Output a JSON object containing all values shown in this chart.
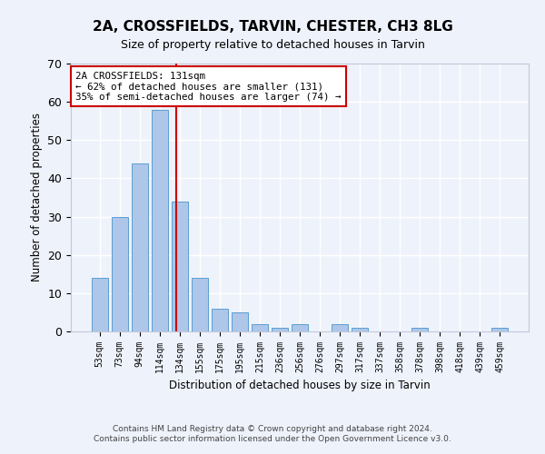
{
  "title_line1": "2A, CROSSFIELDS, TARVIN, CHESTER, CH3 8LG",
  "title_line2": "Size of property relative to detached houses in Tarvin",
  "xlabel": "Distribution of detached houses by size in Tarvin",
  "ylabel": "Number of detached properties",
  "bar_labels": [
    "53sqm",
    "73sqm",
    "94sqm",
    "114sqm",
    "134sqm",
    "155sqm",
    "175sqm",
    "195sqm",
    "215sqm",
    "236sqm",
    "256sqm",
    "276sqm",
    "297sqm",
    "317sqm",
    "337sqm",
    "358sqm",
    "378sqm",
    "398sqm",
    "418sqm",
    "439sqm",
    "459sqm"
  ],
  "bar_values": [
    14,
    30,
    44,
    58,
    34,
    14,
    6,
    5,
    2,
    1,
    2,
    0,
    2,
    1,
    0,
    0,
    1,
    0,
    0,
    0,
    1
  ],
  "bar_color": "#aec6e8",
  "bar_edgecolor": "#5a9fd4",
  "ylim": [
    0,
    70
  ],
  "yticks": [
    0,
    10,
    20,
    30,
    40,
    50,
    60,
    70
  ],
  "vline_x": 3.82,
  "vline_color": "#cc0000",
  "annotation_text": "2A CROSSFIELDS: 131sqm\n← 62% of detached houses are smaller (131)\n35% of semi-detached houses are larger (74) →",
  "footer_line1": "Contains HM Land Registry data © Crown copyright and database right 2024.",
  "footer_line2": "Contains public sector information licensed under the Open Government Licence v3.0.",
  "bg_color": "#eef2fb",
  "plot_bg_color": "#eef2fb",
  "grid_color": "#ffffff"
}
